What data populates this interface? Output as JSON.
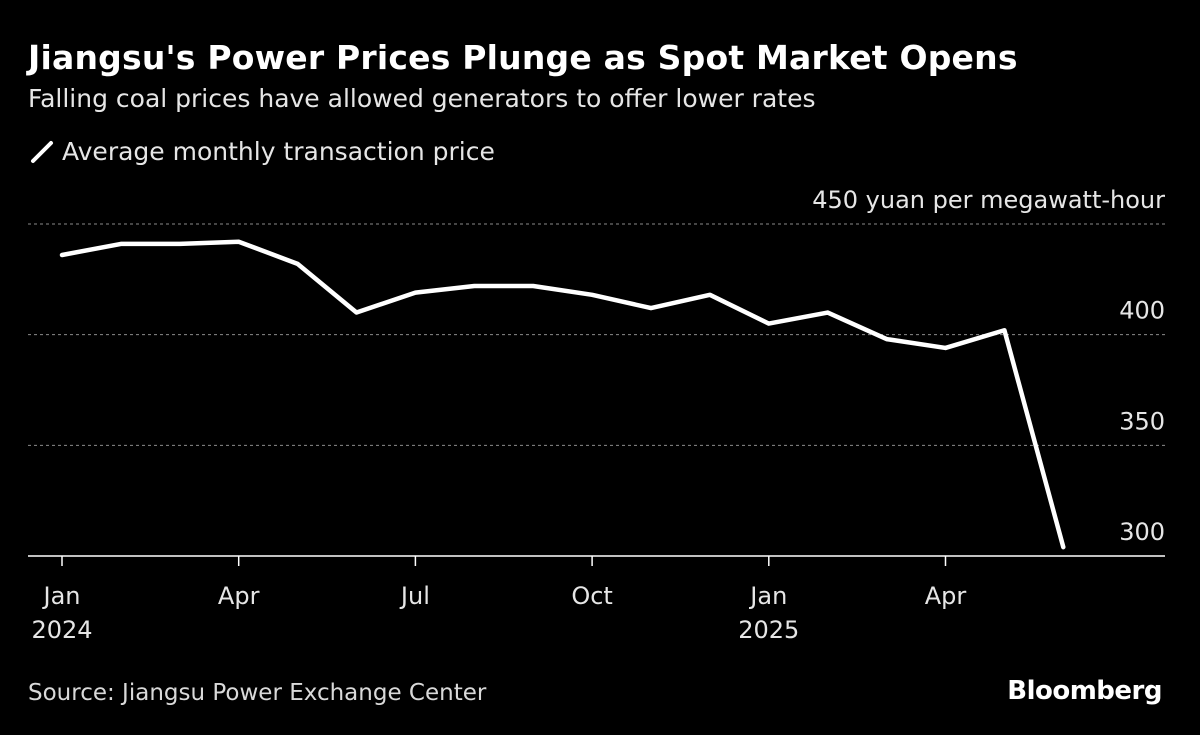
{
  "header": {
    "title": "Jiangsu's Power Prices Plunge as Spot Market Opens",
    "subtitle": "Falling coal prices have allowed generators to offer lower rates"
  },
  "legend": {
    "label": "Average monthly transaction price",
    "color": "#ffffff"
  },
  "footer": {
    "source": "Source: Jiangsu Power Exchange Center",
    "brand": "Bloomberg"
  },
  "chart_data": {
    "type": "line",
    "title": "Jiangsu's Power Prices Plunge as Spot Market Opens",
    "subtitle": "Falling coal prices have allowed generators to offer lower rates",
    "unit_label": "450 yuan per megawatt-hour",
    "ylim": [
      300,
      450
    ],
    "y_ticks": [
      {
        "value": 450,
        "label": "450 yuan per megawatt-hour"
      },
      {
        "value": 400,
        "label": "400"
      },
      {
        "value": 350,
        "label": "350"
      },
      {
        "value": 300,
        "label": "300"
      }
    ],
    "x_ticks": [
      {
        "index": 0,
        "label": "Jan",
        "year": "2024"
      },
      {
        "index": 3,
        "label": "Apr",
        "year": ""
      },
      {
        "index": 6,
        "label": "Jul",
        "year": ""
      },
      {
        "index": 9,
        "label": "Oct",
        "year": ""
      },
      {
        "index": 12,
        "label": "Jan",
        "year": "2025"
      },
      {
        "index": 15,
        "label": "Apr",
        "year": ""
      }
    ],
    "x": [
      "2024-01",
      "2024-02",
      "2024-03",
      "2024-04",
      "2024-05",
      "2024-06",
      "2024-07",
      "2024-08",
      "2024-09",
      "2024-10",
      "2024-11",
      "2024-12",
      "2025-01",
      "2025-02",
      "2025-03",
      "2025-04",
      "2025-05",
      "2025-06"
    ],
    "series": [
      {
        "name": "Average monthly transaction price",
        "values": [
          436,
          441,
          441,
          442,
          432,
          410,
          419,
          422,
          422,
          418,
          412,
          418,
          405,
          410,
          398,
          394,
          402,
          304
        ]
      }
    ],
    "grid": true,
    "legend_position": "top-left"
  }
}
